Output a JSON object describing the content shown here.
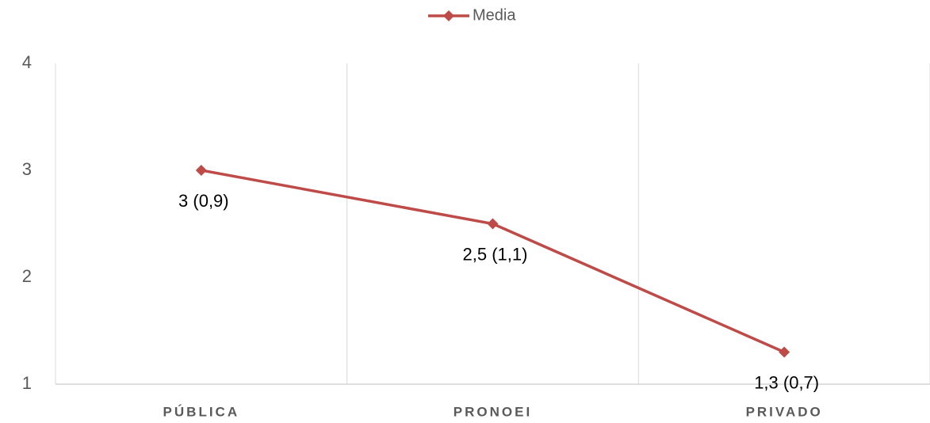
{
  "chart_data": {
    "type": "line",
    "categories": [
      "PÚBLICA",
      "PRONOEI",
      "PRIVADO"
    ],
    "series": [
      {
        "name": "Media",
        "color": "#be4b48",
        "values": [
          3,
          2.5,
          1.3
        ],
        "value_labels": [
          "3 (0,9)",
          "2,5 (1,1)",
          "1,3 (0,7)"
        ]
      }
    ],
    "ylim": [
      1,
      4
    ],
    "yticks": [
      1,
      2,
      3,
      4
    ],
    "grid": "x",
    "legend": "top"
  }
}
